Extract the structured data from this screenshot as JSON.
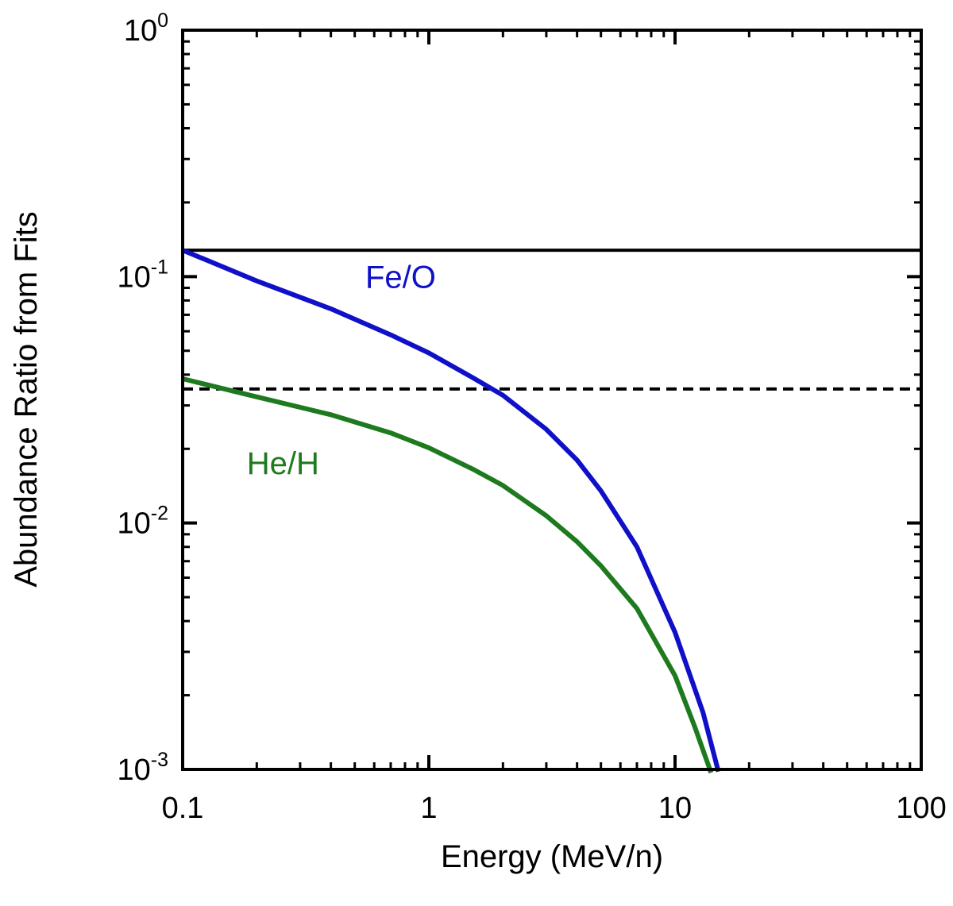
{
  "chart_data": {
    "type": "line",
    "xscale": "log",
    "yscale": "log",
    "xlabel": "Energy (MeV/n)",
    "ylabel": "Abundance Ratio from Fits",
    "xlim": [
      0.1,
      100
    ],
    "ylim": [
      0.001,
      1
    ],
    "x_ticks": [
      {
        "value": 0.1,
        "label": "0.1"
      },
      {
        "value": 1,
        "label": "1"
      },
      {
        "value": 10,
        "label": "10"
      },
      {
        "value": 100,
        "label": "100"
      }
    ],
    "y_ticks": [
      {
        "value": 1,
        "base": "10",
        "exp": "0"
      },
      {
        "value": 0.1,
        "base": "10",
        "exp": "-1"
      },
      {
        "value": 0.01,
        "base": "10",
        "exp": "-2"
      },
      {
        "value": 0.001,
        "base": "10",
        "exp": "-3"
      }
    ],
    "reference_lines": [
      {
        "name": "solid-reference",
        "y": 0.128,
        "style": "solid",
        "color": "#000000"
      },
      {
        "name": "dashed-reference",
        "y": 0.035,
        "style": "dashed",
        "color": "#000000"
      }
    ],
    "series": [
      {
        "name": "Fe/O",
        "color": "#1010c8",
        "label_anchor": [
          1.0,
          0.1
        ],
        "x": [
          0.1,
          0.2,
          0.4,
          0.7,
          1.0,
          1.5,
          2.0,
          3.0,
          4.0,
          5.0,
          7.0,
          10.0,
          13.0,
          15.0
        ],
        "y": [
          0.128,
          0.096,
          0.074,
          0.058,
          0.049,
          0.039,
          0.033,
          0.024,
          0.018,
          0.0135,
          0.008,
          0.0036,
          0.0017,
          0.00098
        ]
      },
      {
        "name": "He/H",
        "color": "#1e7a1e",
        "label_anchor": [
          0.33,
          0.0175
        ],
        "x": [
          0.1,
          0.2,
          0.4,
          0.7,
          1.0,
          1.5,
          2.0,
          3.0,
          4.0,
          5.0,
          7.0,
          10.0,
          12.0,
          14.0
        ],
        "y": [
          0.0385,
          0.0325,
          0.0275,
          0.0232,
          0.0202,
          0.0166,
          0.0142,
          0.0107,
          0.0084,
          0.0067,
          0.0045,
          0.0024,
          0.0015,
          0.00097
        ]
      }
    ]
  }
}
